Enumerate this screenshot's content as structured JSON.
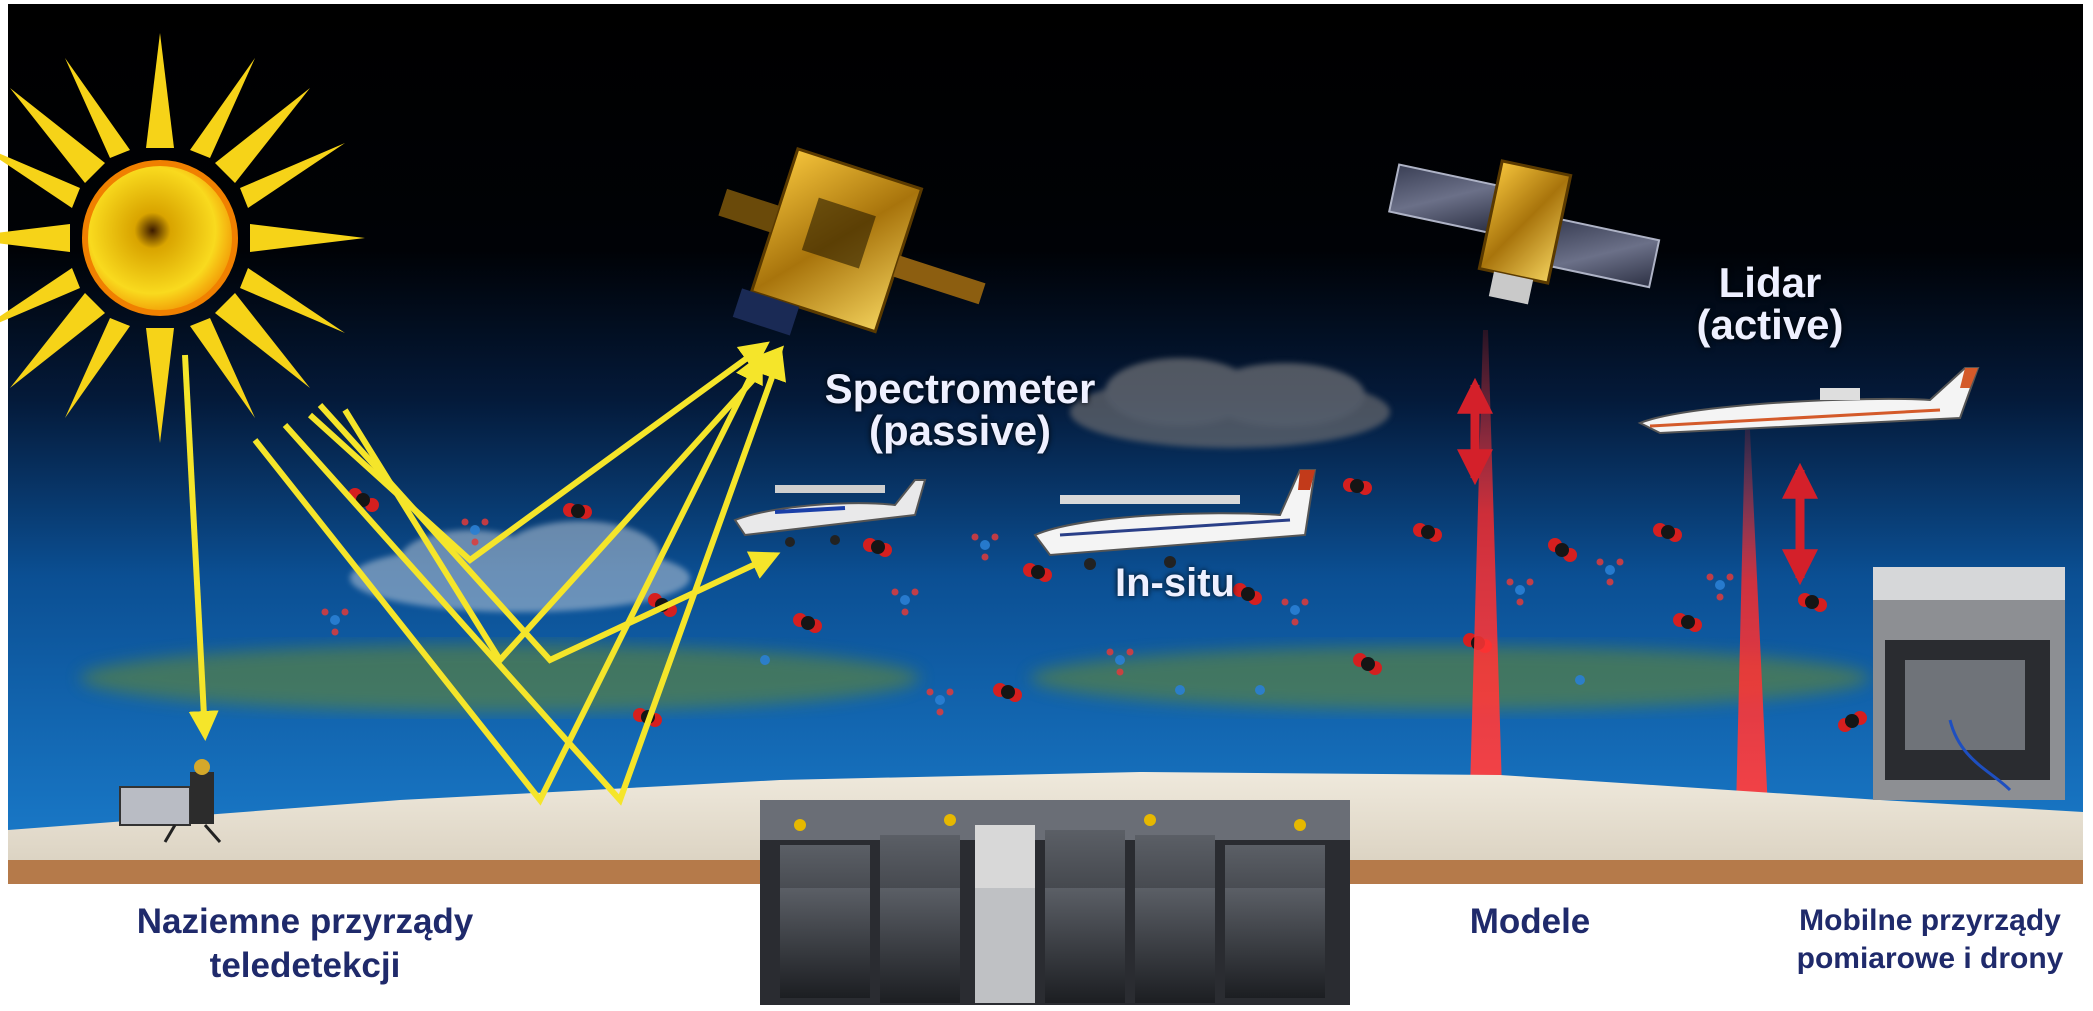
{
  "labels": {
    "spectrometer_line1": "Spectrometer",
    "spectrometer_line2": "(passive)",
    "lidar_line1": "Lidar",
    "lidar_line2": "(active)",
    "in_situ": "In-situ"
  },
  "captions": {
    "ground_line1": "Naziemne przyrządy",
    "ground_line2": "teledetekcji",
    "models": "Modele",
    "mobile_line1": "Mobilne przyrządy",
    "mobile_line2": "pomiarowe i drony"
  },
  "colors": {
    "sky_top": "#000000",
    "sky_bottom": "#1776c8",
    "sun": "#f7d21e",
    "arrow": "#f5e52a",
    "laser": "#e11c1c",
    "ground": "#e9e2d4",
    "caption_text": "#1f2a6b"
  },
  "icons": [
    "sun-icon",
    "satellite-icon",
    "airplane-icon",
    "cloud-icon",
    "molecule-icon",
    "ground-instrument-icon",
    "server-room-icon",
    "mobile-van-icon"
  ]
}
